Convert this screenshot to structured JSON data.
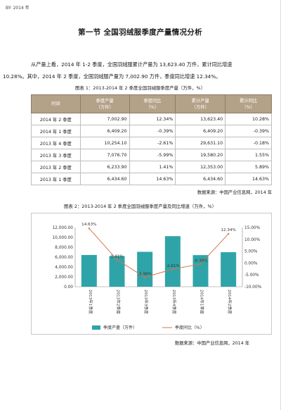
{
  "header_tag": "BY: 2014 年",
  "title": "第一节 全国羽绒服季度产量情况分析",
  "paragraph": {
    "line1": "从产量上看，2014 年 1-2 季度，全国羽绒服累计产量为 13,623.40 万件，累计同比增速",
    "line2": "10.28%。其中，2014 年 2 季度，全国羽绒服产量为 7,002.90 万件，季度同比增速 12.34%。"
  },
  "table": {
    "caption": "图表 1：2013-2014 年 2 季度全国羽绒服季度产量（万件，%）",
    "headers": [
      "时间",
      "季度产量\n（万件）",
      "季度同比\n（%）",
      "累计产量\n（万件）",
      "累计同比\n（%）"
    ],
    "rows": [
      [
        "2014 年 2 季度",
        "7,002.90",
        "12.34%",
        "13,623.40",
        "10.28%"
      ],
      [
        "2014 年 1 季度",
        "6,409.20",
        "-0.39%",
        "6,409.20",
        "-0.39%"
      ],
      [
        "2013 年 4 季度",
        "10,254.10",
        "-2.61%",
        "29,631.10",
        "-0.18%"
      ],
      [
        "2013 年 3 季度",
        "7,076.70",
        "-5.99%",
        "19,580.20",
        "1.55%"
      ],
      [
        "2013 年 2 季度",
        "6,233.90",
        "1.41%",
        "12,353.00",
        "5.89%"
      ],
      [
        "2013 年 1 季度",
        "6,434.60",
        "14.63%",
        "6,434.60",
        "14.63%"
      ]
    ],
    "source": "数据来源：中国产业信息网，2014 年"
  },
  "chart_caption": "图表 2：2013-2014 年 2 季度全国羽绒服季度产量及同比增速（万件，%）",
  "chart_source": "数据来源：中国产业信息网，2014 年",
  "chart_data": {
    "type": "bar",
    "categories": [
      "2013年1季度",
      "2013年2季度",
      "2013年3季度",
      "2013年4季度",
      "2014年1季度",
      "2014年2季度"
    ],
    "series": [
      {
        "name": "季度产量（万件）",
        "values": [
          6434.6,
          6233.9,
          7076.7,
          10254.1,
          6409.2,
          7002.9
        ],
        "color": "#2fa4a8",
        "axis": "left",
        "kind": "bar"
      },
      {
        "name": "季度同比（%）",
        "values": [
          14.63,
          1.41,
          -5.99,
          -2.61,
          -0.39,
          12.34
        ],
        "color": "#d1784a",
        "axis": "right",
        "kind": "line"
      }
    ],
    "data_labels": [
      "14.63%",
      "1.41%",
      "-5.99%",
      "-2.61%",
      "-0.39%",
      "12.34%"
    ],
    "y_left": {
      "min": 0,
      "max": 12000,
      "ticks": [
        "0.00",
        "2,000.00",
        "4,000.00",
        "6,000.00",
        "8,000.00",
        "10,000.00",
        "12,000.00"
      ]
    },
    "y_right": {
      "min": -10,
      "max": 15,
      "ticks": [
        "-10.00%",
        "-5.00%",
        "0.00%",
        "5.00%",
        "10.00%",
        "15.00%"
      ]
    },
    "legend_position": "bottom",
    "grid": false
  }
}
